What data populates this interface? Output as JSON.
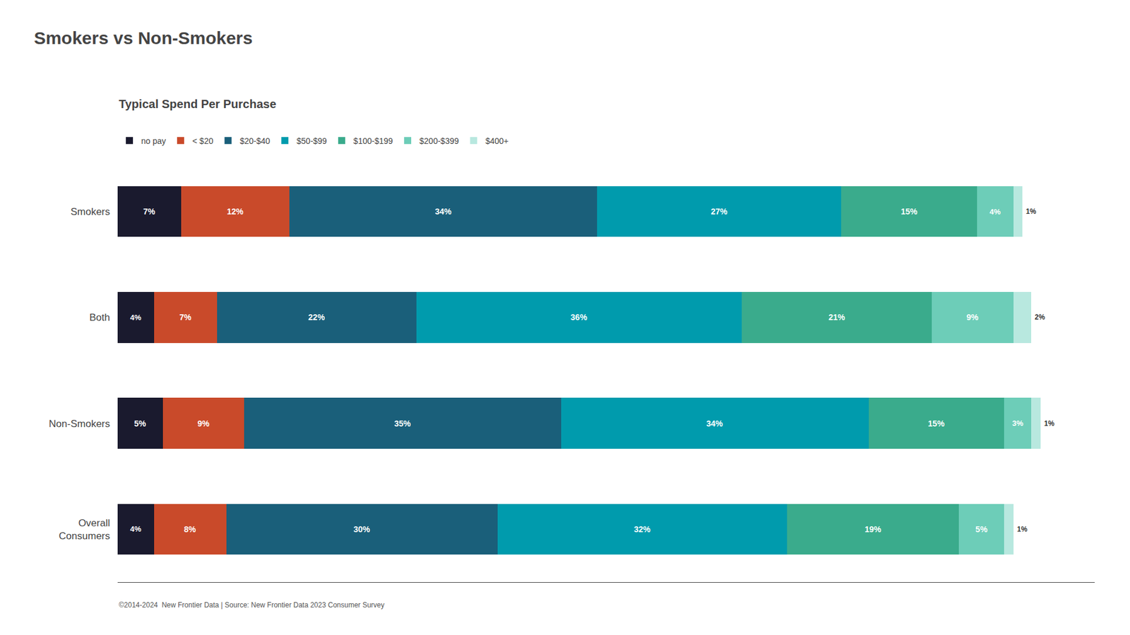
{
  "chart_data": {
    "type": "bar",
    "orientation": "horizontal",
    "stacked": true,
    "title": "Smokers vs Non-Smokers",
    "subtitle": "Typical Spend Per Purchase",
    "footer": "©2014-2024  New Frontier Data | Source: New Frontier Data 2023 Consumer Survey",
    "categories": [
      "Smokers",
      "Both",
      "Non-Smokers",
      "Overall\nConsumers"
    ],
    "series": [
      {
        "name": "no pay",
        "color": "#1a1a2e",
        "values": [
          7,
          4,
          5,
          4
        ],
        "value_labels": [
          "7%",
          "4%",
          "5%",
          "4%"
        ]
      },
      {
        "name": "< $20",
        "color": "#c94a2a",
        "values": [
          12,
          7,
          9,
          8
        ],
        "value_labels": [
          "12%",
          "7%",
          "9%",
          "8%"
        ]
      },
      {
        "name": "$20-$40",
        "color": "#1a5f7a",
        "values": [
          34,
          22,
          35,
          30
        ],
        "value_labels": [
          "34%",
          "22%",
          "35%",
          "30%"
        ]
      },
      {
        "name": "$50-$99",
        "color": "#009bad",
        "values": [
          27,
          36,
          34,
          32
        ],
        "value_labels": [
          "27%",
          "36%",
          "34%",
          "32%"
        ]
      },
      {
        "name": "$100-$199",
        "color": "#3aab8c",
        "values": [
          15,
          21,
          15,
          19
        ],
        "value_labels": [
          "15%",
          "21%",
          "15%",
          "19%"
        ]
      },
      {
        "name": "$200-$399",
        "color": "#6dcdb8",
        "values": [
          4,
          9,
          3,
          5
        ],
        "value_labels": [
          "4%",
          "9%",
          "3%",
          "5%"
        ]
      },
      {
        "name": "$400+",
        "color": "#b8e8df",
        "values": [
          1,
          2,
          1,
          1
        ],
        "value_labels": [
          "1%",
          "2%",
          "1%",
          "1%"
        ]
      }
    ],
    "xlim": [
      0,
      108
    ],
    "data_labels": true,
    "tick_labels": "y",
    "grid": false,
    "legend": "top"
  }
}
